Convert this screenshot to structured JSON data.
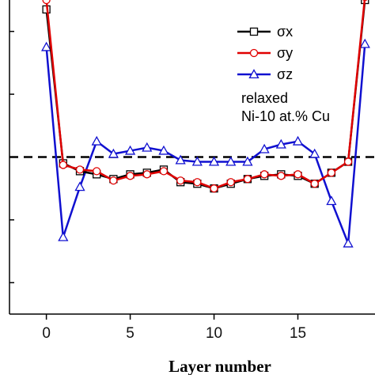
{
  "chart_data": {
    "type": "line",
    "title": "",
    "xlabel": "Layer number",
    "ylabel": "",
    "xlim": [
      -2.2,
      19.6
    ],
    "ylim": [
      -1.0,
      1.0
    ],
    "x_ticks": [
      0,
      5,
      10,
      15
    ],
    "x_tick_labels": [
      "0",
      "5",
      "10",
      "15"
    ],
    "y_ticks": [
      -0.8,
      -0.4,
      0.0,
      0.4,
      0.8
    ],
    "grid": false,
    "legend": {
      "placement": "top-right"
    },
    "reference_line": {
      "y": 0,
      "style": "dashed",
      "color": "#000000"
    },
    "x": [
      0,
      1,
      2,
      3,
      4,
      5,
      6,
      7,
      8,
      9,
      10,
      11,
      12,
      13,
      14,
      15,
      16,
      17,
      18,
      19
    ],
    "series": [
      {
        "name": "σx",
        "color": "#000000",
        "marker": "square",
        "values": [
          0.94,
          -0.04,
          -0.09,
          -0.11,
          -0.14,
          -0.11,
          -0.1,
          -0.08,
          -0.16,
          -0.17,
          -0.2,
          -0.17,
          -0.14,
          -0.12,
          -0.11,
          -0.12,
          -0.17,
          -0.1,
          -0.03,
          1.0
        ]
      },
      {
        "name": "σy",
        "color": "#e00000",
        "marker": "circle",
        "values": [
          1.0,
          -0.05,
          -0.08,
          -0.09,
          -0.15,
          -0.12,
          -0.11,
          -0.09,
          -0.15,
          -0.16,
          -0.2,
          -0.16,
          -0.14,
          -0.11,
          -0.12,
          -0.11,
          -0.17,
          -0.1,
          -0.03,
          1.02
        ]
      },
      {
        "name": "σz",
        "color": "#1010d0",
        "marker": "triangle",
        "values": [
          0.7,
          -0.51,
          -0.19,
          0.1,
          0.02,
          0.04,
          0.06,
          0.04,
          -0.02,
          -0.03,
          -0.03,
          -0.03,
          -0.03,
          0.05,
          0.08,
          0.1,
          0.02,
          -0.28,
          -0.55,
          0.72
        ]
      }
    ],
    "annotations": [
      "relaxed",
      "Ni-10 at.% Cu"
    ]
  }
}
